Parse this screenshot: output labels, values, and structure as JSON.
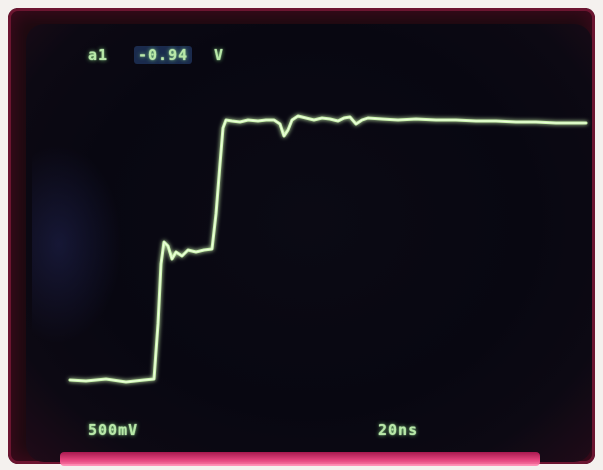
{
  "readouts": {
    "channel_label": "a1",
    "channel_value": "-0.94",
    "channel_unit": "V",
    "volts_per_div": "500mV",
    "time_per_div": "20ns"
  },
  "colors": {
    "trace": "#cdf5b0",
    "readout": "#b8e8a8",
    "bezel": "#6b1530",
    "screen": "#0b0a14",
    "glow": "#ff4e8c"
  }
}
